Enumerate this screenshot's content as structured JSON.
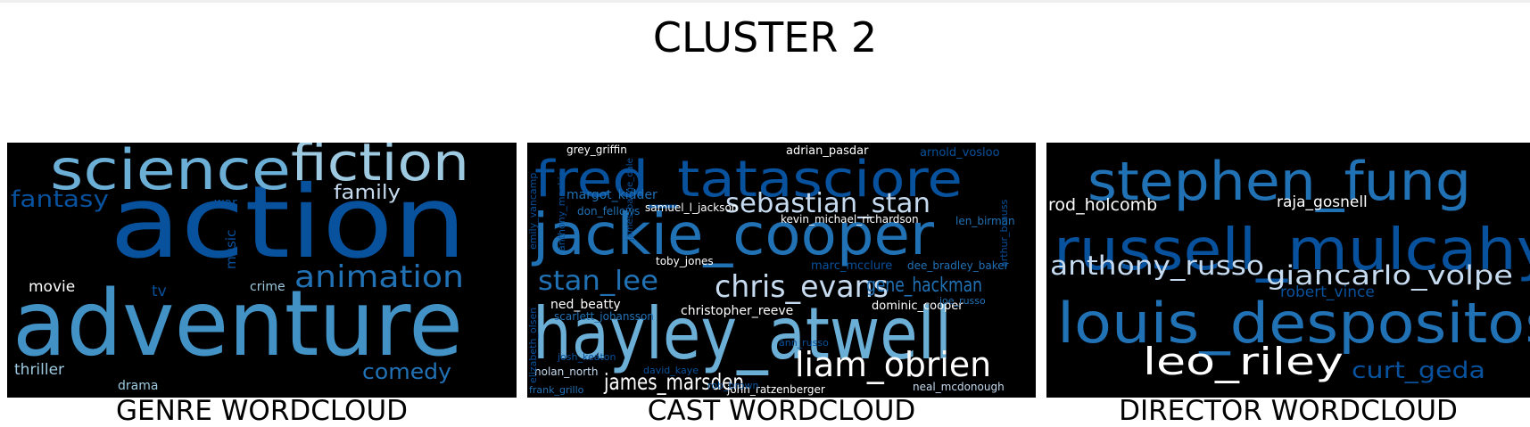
{
  "title": "CLUSTER 2",
  "colors": {
    "palette": [
      "#08306b",
      "#084594",
      "#08519c",
      "#2171b5",
      "#4292c6",
      "#6baed6",
      "#9ecae1",
      "#c6dbef",
      "#ffffff"
    ],
    "background": "#000000"
  },
  "chart_data": [
    {
      "type": "wordcloud",
      "caption": "GENRE WORDCLOUD",
      "words": [
        {
          "text": "action",
          "weight": 1.0,
          "color": "#08519c"
        },
        {
          "text": "adventure",
          "weight": 0.88,
          "color": "#4292c6"
        },
        {
          "text": "science",
          "weight": 0.52,
          "color": "#6baed6"
        },
        {
          "text": "fiction",
          "weight": 0.5,
          "color": "#9ecae1"
        },
        {
          "text": "animation",
          "weight": 0.3,
          "color": "#2171b5"
        },
        {
          "text": "comedy",
          "weight": 0.2,
          "color": "#2171b5"
        },
        {
          "text": "fantasy",
          "weight": 0.2,
          "color": "#08519c"
        },
        {
          "text": "family",
          "weight": 0.15,
          "color": "#c6dbef"
        },
        {
          "text": "movie",
          "weight": 0.12,
          "color": "#ffffff"
        },
        {
          "text": "thriller",
          "weight": 0.12,
          "color": "#9ecae1"
        },
        {
          "text": "tv",
          "weight": 0.1,
          "color": "#08519c"
        },
        {
          "text": "crime",
          "weight": 0.1,
          "color": "#9ecae1"
        },
        {
          "text": "music",
          "weight": 0.08,
          "color": "#08519c"
        },
        {
          "text": "drama",
          "weight": 0.08,
          "color": "#9ecae1"
        },
        {
          "text": "war",
          "weight": 0.08,
          "color": "#08519c"
        }
      ]
    },
    {
      "type": "wordcloud",
      "caption": "CAST WORDCLOUD",
      "words": [
        {
          "text": "hayley_atwell",
          "weight": 1.0,
          "color": "#6baed6"
        },
        {
          "text": "jackie_cooper",
          "weight": 0.95,
          "color": "#2171b5"
        },
        {
          "text": "fred_tatasciore",
          "weight": 0.9,
          "color": "#08519c"
        },
        {
          "text": "liam_obrien",
          "weight": 0.6,
          "color": "#ffffff"
        },
        {
          "text": "chris_evans",
          "weight": 0.5,
          "color": "#c6dbef"
        },
        {
          "text": "sebastian_stan",
          "weight": 0.45,
          "color": "#c6dbef"
        },
        {
          "text": "stan_lee",
          "weight": 0.45,
          "color": "#2171b5"
        },
        {
          "text": "james_marsden",
          "weight": 0.35,
          "color": "#ffffff"
        },
        {
          "text": "gene_hackman",
          "weight": 0.3,
          "color": "#2171b5"
        },
        {
          "text": "margot_kidder",
          "weight": 0.2,
          "color": "#2171b5"
        },
        {
          "text": "christopher_reeve",
          "weight": 0.18,
          "color": "#ffffff"
        },
        {
          "text": "ned_beatty",
          "weight": 0.15,
          "color": "#ffffff"
        },
        {
          "text": "dominic_cooper",
          "weight": 0.14,
          "color": "#ffffff"
        },
        {
          "text": "arnold_vosloo",
          "weight": 0.14,
          "color": "#08519c"
        },
        {
          "text": "adrian_pasdar",
          "weight": 0.13,
          "color": "#ffffff"
        },
        {
          "text": "marc_mcclure",
          "weight": 0.13,
          "color": "#08519c"
        },
        {
          "text": "dee_bradley_baker",
          "weight": 0.13,
          "color": "#2171b5"
        },
        {
          "text": "scarlett_johansson",
          "weight": 0.12,
          "color": "#2171b5"
        },
        {
          "text": "toby_jones",
          "weight": 0.12,
          "color": "#ffffff"
        },
        {
          "text": "nolan_north",
          "weight": 0.12,
          "color": "#c6dbef"
        },
        {
          "text": "neal_mcdonough",
          "weight": 0.12,
          "color": "#c6dbef"
        },
        {
          "text": "john_ratzenberger",
          "weight": 0.12,
          "color": "#ffffff"
        },
        {
          "text": "kevin_michael_richardson",
          "weight": 0.11,
          "color": "#ffffff"
        },
        {
          "text": "samuel_l_jackson",
          "weight": 0.11,
          "color": "#ffffff"
        },
        {
          "text": "don_fellows",
          "weight": 0.11,
          "color": "#2171b5"
        },
        {
          "text": "len_birman",
          "weight": 0.11,
          "color": "#2171b5"
        },
        {
          "text": "grey_griffin",
          "weight": 0.1,
          "color": "#ffffff"
        },
        {
          "text": "frank_grillo",
          "weight": 0.1,
          "color": "#2171b5"
        },
        {
          "text": "joe_russo",
          "weight": 0.1,
          "color": "#2171b5"
        },
        {
          "text": "david_kaye",
          "weight": 0.1,
          "color": "#08519c"
        },
        {
          "text": "josh_keaton",
          "weight": 0.1,
          "color": "#08519c"
        },
        {
          "text": "ann_russo",
          "weight": 0.09,
          "color": "#08519c"
        },
        {
          "text": "rob_brown",
          "weight": 0.09,
          "color": "#08519c"
        },
        {
          "text": "anthony_mackie",
          "weight": 0.09,
          "color": "#08519c"
        },
        {
          "text": "emily_vancamp",
          "weight": 0.09,
          "color": "#08519c"
        },
        {
          "text": "elizabeth_olsen",
          "weight": 0.09,
          "color": "#08519c"
        },
        {
          "text": "arthur_brauss",
          "weight": 0.08,
          "color": "#08519c"
        },
        {
          "text": "james_badge_dale",
          "weight": 0.08,
          "color": "#08519c"
        }
      ]
    },
    {
      "type": "wordcloud",
      "caption": "DIRECTOR WORDCLOUD",
      "words": [
        {
          "text": "russell_mulcahy",
          "weight": 1.0,
          "color": "#08519c"
        },
        {
          "text": "louis_despositos",
          "weight": 0.98,
          "color": "#2171b5"
        },
        {
          "text": "stephen_fung",
          "weight": 0.85,
          "color": "#2171b5"
        },
        {
          "text": "leo_riley",
          "weight": 0.6,
          "color": "#ffffff"
        },
        {
          "text": "anthony_russo",
          "weight": 0.4,
          "color": "#c6dbef"
        },
        {
          "text": "giancarlo_volpe",
          "weight": 0.4,
          "color": "#c6dbef"
        },
        {
          "text": "curt_geda",
          "weight": 0.35,
          "color": "#08519c"
        },
        {
          "text": "rod_holcomb",
          "weight": 0.22,
          "color": "#ffffff"
        },
        {
          "text": "raja_gosnell",
          "weight": 0.2,
          "color": "#ffffff"
        },
        {
          "text": "robert_vince",
          "weight": 0.2,
          "color": "#08519c"
        }
      ]
    }
  ]
}
